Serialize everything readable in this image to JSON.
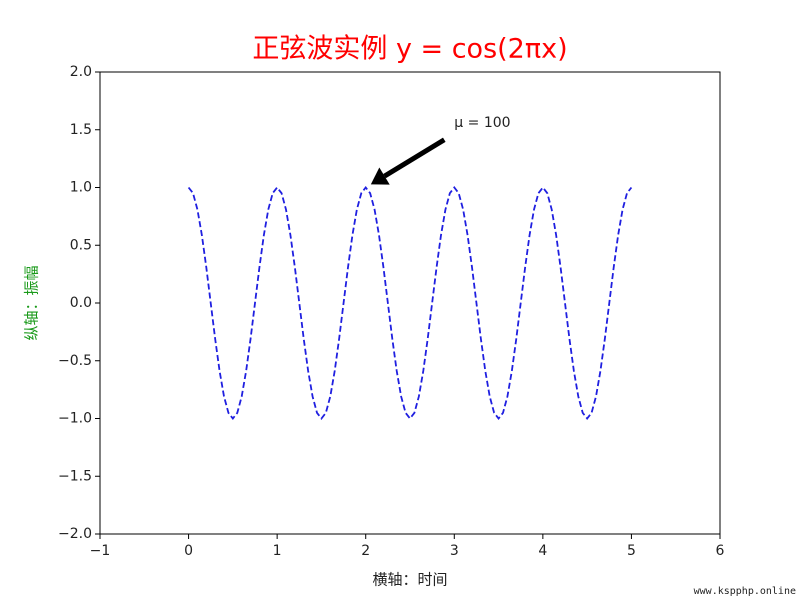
{
  "chart_data": {
    "type": "line",
    "title": "正弦波实例 y = cos(2πx)",
    "xlabel": "横轴：时间",
    "ylabel": "纵轴：振幅",
    "watermark": "www.kspphp.online",
    "linestyle": "dashed",
    "color": "#1f1fe0",
    "x": [
      0,
      0.05,
      0.1,
      0.15,
      0.2,
      0.25,
      0.3,
      0.35,
      0.4,
      0.45,
      0.5,
      0.55,
      0.6,
      0.65,
      0.7,
      0.75,
      0.8,
      0.85,
      0.9,
      0.95,
      1,
      1.05,
      1.1,
      1.15,
      1.2,
      1.25,
      1.3,
      1.35,
      1.4,
      1.45,
      1.5,
      1.55,
      1.6,
      1.65,
      1.7,
      1.75,
      1.8,
      1.85,
      1.9,
      1.95,
      2,
      2.05,
      2.1,
      2.15,
      2.2,
      2.25,
      2.3,
      2.35,
      2.4,
      2.45,
      2.5,
      2.55,
      2.6,
      2.65,
      2.7,
      2.75,
      2.8,
      2.85,
      2.9,
      2.95,
      3,
      3.05,
      3.1,
      3.15,
      3.2,
      3.25,
      3.3,
      3.35,
      3.4,
      3.45,
      3.5,
      3.55,
      3.6,
      3.65,
      3.7,
      3.75,
      3.8,
      3.85,
      3.9,
      3.95,
      4,
      4.05,
      4.1,
      4.15,
      4.2,
      4.25,
      4.3,
      4.35,
      4.4,
      4.45,
      4.5,
      4.55,
      4.6,
      4.65,
      4.7,
      4.75,
      4.8,
      4.85,
      4.9,
      4.95,
      5
    ],
    "values": [
      1,
      0.951,
      0.809,
      0.588,
      0.309,
      0,
      -0.309,
      -0.588,
      -0.809,
      -0.951,
      -1,
      -0.951,
      -0.809,
      -0.588,
      -0.309,
      0,
      0.309,
      0.588,
      0.809,
      0.951,
      1,
      0.951,
      0.809,
      0.588,
      0.309,
      0,
      -0.309,
      -0.588,
      -0.809,
      -0.951,
      -1,
      -0.951,
      -0.809,
      -0.588,
      -0.309,
      0,
      0.309,
      0.588,
      0.809,
      0.951,
      1,
      0.951,
      0.809,
      0.588,
      0.309,
      0,
      -0.309,
      -0.588,
      -0.809,
      -0.951,
      -1,
      -0.951,
      -0.809,
      -0.588,
      -0.309,
      0,
      0.309,
      0.588,
      0.809,
      0.951,
      1,
      0.951,
      0.809,
      0.588,
      0.309,
      0,
      -0.309,
      -0.588,
      -0.809,
      -0.951,
      -1,
      -0.951,
      -0.809,
      -0.588,
      -0.309,
      0,
      0.309,
      0.588,
      0.809,
      0.951,
      1,
      0.951,
      0.809,
      0.588,
      0.309,
      0,
      -0.309,
      -0.588,
      -0.809,
      -0.951,
      -1,
      -0.951,
      -0.809,
      -0.588,
      -0.309,
      0,
      0.309,
      0.588,
      0.809,
      0.951,
      1
    ],
    "xlim": [
      -1,
      6
    ],
    "xticks": [
      {
        "value": -1,
        "label": "−1"
      },
      0,
      1,
      2,
      3,
      4,
      5,
      6
    ],
    "ylim": [
      -2,
      2
    ],
    "yticks": [
      {
        "value": -2,
        "label": "−2.0"
      },
      {
        "value": -1.5,
        "label": "−1.5"
      },
      {
        "value": -1,
        "label": "−1.0"
      },
      {
        "value": -0.5,
        "label": "−0.5"
      },
      {
        "value": 0,
        "label": "0.0"
      },
      {
        "value": 0.5,
        "label": "0.5"
      },
      {
        "value": 1,
        "label": "1.0"
      },
      {
        "value": 1.5,
        "label": "1.5"
      },
      {
        "value": 2,
        "label": "2.0"
      }
    ],
    "annotations": [
      {
        "text": "μ = 100",
        "xy": [
          2,
          1
        ],
        "xytext": [
          3,
          1.5
        ]
      }
    ]
  }
}
